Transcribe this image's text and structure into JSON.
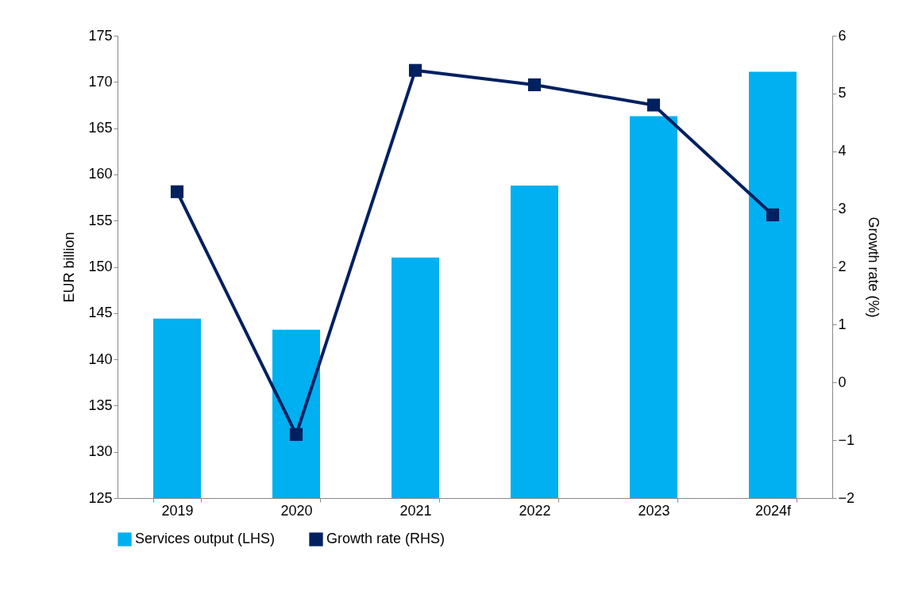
{
  "chart_data": {
    "type": "bar",
    "categories": [
      "2019",
      "2020",
      "2021",
      "2022",
      "2023",
      "2024f"
    ],
    "series": [
      {
        "name": "Services output (LHS)",
        "color": "#00b0f0",
        "values": [
          144.4,
          143.2,
          151.0,
          158.8,
          166.3,
          171.1
        ]
      },
      {
        "name": "Growth rate (RHS)",
        "type": "line",
        "axis": "y2",
        "color": "#002060",
        "values": [
          3.3,
          -0.9,
          5.4,
          5.15,
          4.8,
          2.9
        ]
      }
    ],
    "ylabel": "EUR billion",
    "y2label": "Growth rate (%)",
    "ylim": [
      125,
      175
    ],
    "yticks": [
      125,
      130,
      135,
      140,
      145,
      150,
      155,
      160,
      165,
      170,
      175
    ],
    "y2lim": [
      -2,
      6
    ],
    "y2ticks": [
      -2,
      -1,
      0,
      1,
      2,
      3,
      4,
      5,
      6
    ],
    "marker": "square",
    "legend": "bottom"
  }
}
